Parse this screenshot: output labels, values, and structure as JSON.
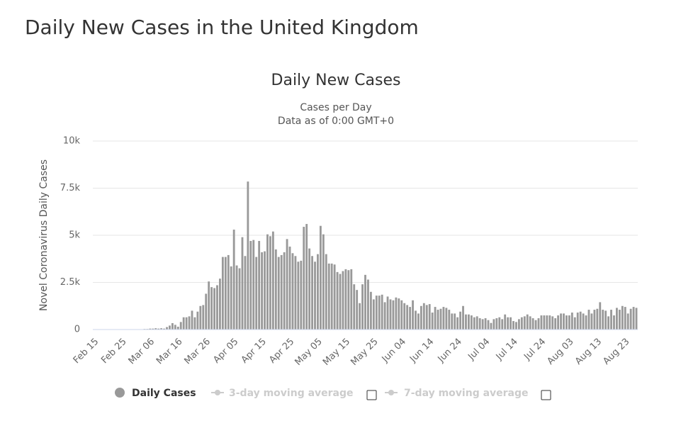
{
  "heading": "Daily New Cases in the United Kingdom",
  "chart_data": {
    "type": "bar",
    "title": "Daily New Cases",
    "subtitle": [
      "Cases per Day",
      "Data as of 0:00 GMT+0"
    ],
    "y_label": "Novel Coronavirus Daily Cases",
    "categories": [
      "Feb 15",
      null,
      null,
      null,
      null,
      null,
      null,
      null,
      null,
      null,
      "Feb 25",
      null,
      null,
      null,
      null,
      null,
      null,
      null,
      null,
      null,
      "Mar 06",
      null,
      null,
      null,
      null,
      null,
      null,
      null,
      null,
      null,
      "Mar 16",
      null,
      null,
      null,
      null,
      null,
      null,
      null,
      null,
      null,
      "Mar 26",
      null,
      null,
      null,
      null,
      null,
      null,
      null,
      null,
      null,
      "Apr 05",
      null,
      null,
      null,
      null,
      null,
      null,
      null,
      null,
      null,
      "Apr 15",
      null,
      null,
      null,
      null,
      null,
      null,
      null,
      null,
      null,
      "Apr 25",
      null,
      null,
      null,
      null,
      null,
      null,
      null,
      null,
      null,
      "May 05",
      null,
      null,
      null,
      null,
      null,
      null,
      null,
      null,
      null,
      "May 15",
      null,
      null,
      null,
      null,
      null,
      null,
      null,
      null,
      null,
      "May 25",
      null,
      null,
      null,
      null,
      null,
      null,
      null,
      null,
      null,
      "Jun 04",
      null,
      null,
      null,
      null,
      null,
      null,
      null,
      null,
      null,
      "Jun 14",
      null,
      null,
      null,
      null,
      null,
      null,
      null,
      null,
      null,
      "Jun 24",
      null,
      null,
      null,
      null,
      null,
      null,
      null,
      null,
      null,
      "Jul 04",
      null,
      null,
      null,
      null,
      null,
      null,
      null,
      null,
      null,
      "Jul 14",
      null,
      null,
      null,
      null,
      null,
      null,
      null,
      null,
      null,
      "Jul 24",
      null,
      null,
      null,
      null,
      null,
      null,
      null,
      null,
      null,
      "Aug 03",
      null,
      null,
      null,
      null,
      null,
      null,
      null,
      null,
      null,
      "Aug 13",
      null,
      null,
      null,
      null,
      null,
      null,
      null,
      null,
      null,
      "Aug 23",
      null,
      null,
      null,
      null
    ],
    "series": [
      {
        "name": "Daily Cases",
        "color": "#999999",
        "values": [
          0,
          0,
          0,
          0,
          0,
          0,
          0,
          0,
          0,
          0,
          0,
          0,
          0,
          0,
          0,
          10,
          5,
          10,
          30,
          30,
          50,
          50,
          70,
          50,
          70,
          50,
          130,
          210,
          340,
          250,
          150,
          400,
          650,
          650,
          700,
          1000,
          650,
          950,
          1250,
          1300,
          1900,
          2550,
          2250,
          2200,
          2350,
          2700,
          3850,
          3850,
          3950,
          3350,
          5300,
          3400,
          3250,
          4900,
          3900,
          7850,
          4700,
          4750,
          3850,
          4700,
          4100,
          4150,
          5050,
          4950,
          5200,
          4250,
          3850,
          3950,
          4100,
          4800,
          4400,
          4050,
          3900,
          3600,
          3650,
          5450,
          5600,
          4300,
          3900,
          3600,
          4000,
          5500,
          5050,
          4000,
          3500,
          3500,
          3450,
          3050,
          2950,
          3100,
          3200,
          3150,
          3200,
          2400,
          2100,
          1400,
          2400,
          2900,
          2650,
          2000,
          1600,
          1800,
          1800,
          1850,
          1450,
          1750,
          1600,
          1550,
          1700,
          1650,
          1550,
          1400,
          1300,
          1200,
          1550,
          1000,
          850,
          1250,
          1400,
          1300,
          1350,
          900,
          1200,
          1050,
          1100,
          1200,
          1150,
          1050,
          850,
          850,
          650,
          950,
          1250,
          800,
          800,
          750,
          650,
          700,
          600,
          550,
          600,
          500,
          350,
          550,
          600,
          650,
          550,
          800,
          650,
          650,
          450,
          400,
          550,
          650,
          700,
          800,
          700,
          600,
          500,
          600,
          750,
          750,
          750,
          750,
          700,
          600,
          750,
          850,
          850,
          750,
          750,
          900,
          650,
          900,
          950,
          850,
          750,
          1050,
          850,
          1050,
          1100,
          1450,
          1050,
          1000,
          700,
          1050,
          750,
          1150,
          1050,
          1250,
          1200,
          850,
          1100,
          1200,
          1150
        ]
      }
    ],
    "legend_extra": [
      "3-day moving average",
      "7-day moving average"
    ],
    "ylim": [
      0,
      10000
    ],
    "yticks": [
      0,
      {
        "value": 2500,
        "label": "2.5k"
      },
      {
        "value": 5000,
        "label": "5k"
      },
      {
        "value": 7500,
        "label": "7.5k"
      },
      {
        "value": 10000,
        "label": "10k"
      }
    ],
    "grid": true
  }
}
